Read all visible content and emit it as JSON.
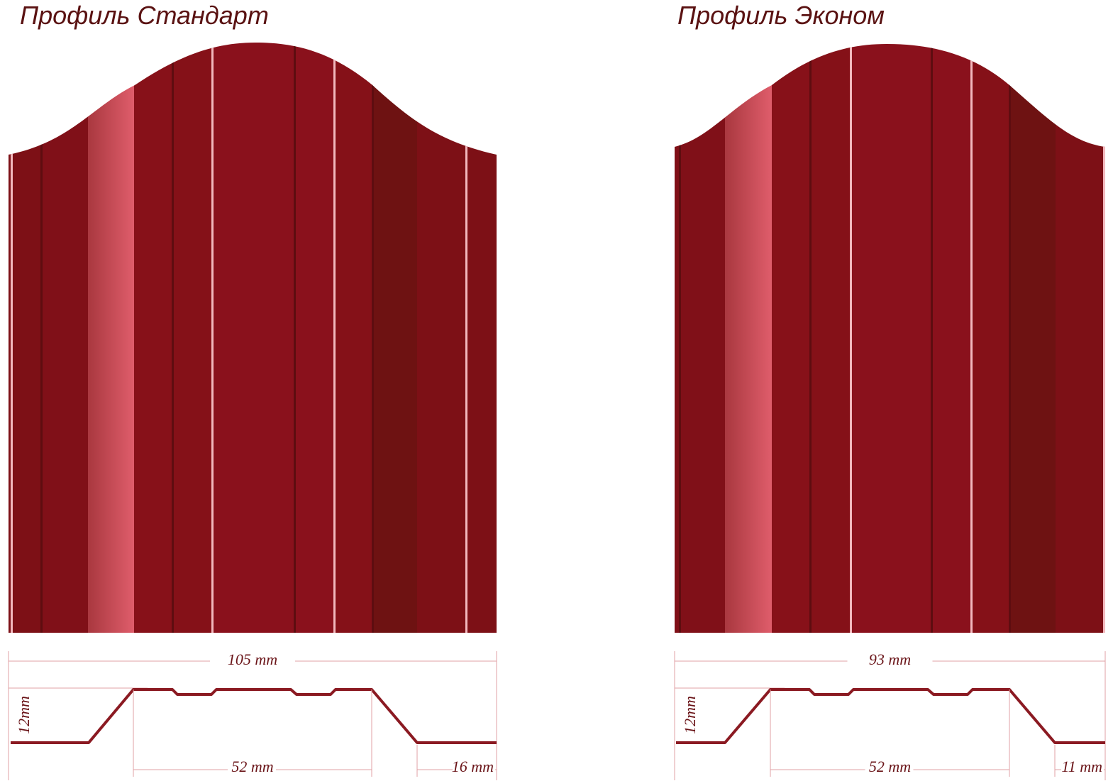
{
  "profiles": [
    {
      "title": "Профиль Стандарт",
      "dimensions": {
        "width": "105 mm",
        "height": "12mm",
        "top": "52 mm",
        "edge": "16 mm"
      }
    },
    {
      "title": "Профиль Эконом",
      "dimensions": {
        "width": "93 mm",
        "height": "12mm",
        "top": "52 mm",
        "edge": "11 mm"
      }
    }
  ]
}
